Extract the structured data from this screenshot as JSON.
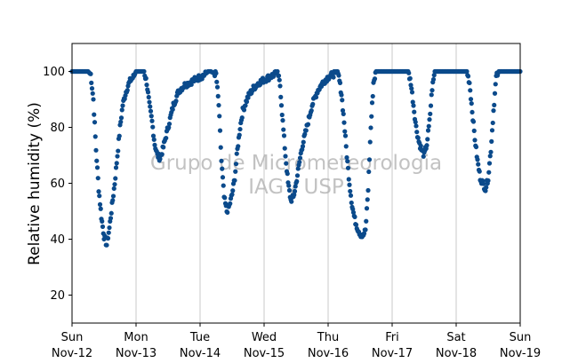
{
  "chart_data": {
    "type": "scatter",
    "title": "",
    "ylabel": "Relative humidity (%)",
    "xlabel": "",
    "ylim": [
      10,
      110
    ],
    "yticks": [
      20,
      40,
      60,
      80,
      100
    ],
    "xlim": [
      "2017-11-12T00:00",
      "2017-11-19T00:00"
    ],
    "xticks": [
      {
        "day": "Sun",
        "date": "Nov-12"
      },
      {
        "day": "Mon",
        "date": "Nov-13"
      },
      {
        "day": "Tue",
        "date": "Nov-14"
      },
      {
        "day": "Wed",
        "date": "Nov-15"
      },
      {
        "day": "Thu",
        "date": "Nov-16"
      },
      {
        "day": "Fri",
        "date": "Nov-17"
      },
      {
        "day": "Sat",
        "date": "Nov-18"
      },
      {
        "day": "Sun",
        "date": "Nov-19"
      }
    ],
    "grid": "vertical",
    "marker_color": "#0b4a8b",
    "watermark": [
      "Grupo de Micrometeorologia",
      "IAG / USP"
    ],
    "series": [
      {
        "points": [
          [
            "2017-11-12T00:00",
            100
          ],
          [
            "2017-11-12T02:00",
            100
          ],
          [
            "2017-11-12T04:00",
            100
          ],
          [
            "2017-11-12T06:00",
            100
          ],
          [
            "2017-11-12T07:00",
            99
          ],
          [
            "2017-11-12T08:00",
            90
          ],
          [
            "2017-11-12T09:00",
            72
          ],
          [
            "2017-11-12T10:00",
            58
          ],
          [
            "2017-11-12T11:00",
            48
          ],
          [
            "2017-11-12T12:00",
            41
          ],
          [
            "2017-11-12T13:00",
            38
          ],
          [
            "2017-11-12T14:00",
            44
          ],
          [
            "2017-11-12T15:00",
            52
          ],
          [
            "2017-11-12T16:00",
            60
          ],
          [
            "2017-11-12T17:00",
            70
          ],
          [
            "2017-11-12T18:00",
            80
          ],
          [
            "2017-11-12T19:00",
            88
          ],
          [
            "2017-11-12T20:00",
            92
          ],
          [
            "2017-11-12T21:00",
            95
          ],
          [
            "2017-11-12T22:00",
            97
          ],
          [
            "2017-11-12T23:00",
            98
          ],
          [
            "2017-11-13T00:00",
            100
          ],
          [
            "2017-11-13T02:00",
            100
          ],
          [
            "2017-11-13T03:00",
            100
          ],
          [
            "2017-11-13T04:00",
            96
          ],
          [
            "2017-11-13T05:00",
            88
          ],
          [
            "2017-11-13T06:00",
            82
          ],
          [
            "2017-11-13T07:00",
            74
          ],
          [
            "2017-11-13T08:00",
            70
          ],
          [
            "2017-11-13T09:00",
            69
          ],
          [
            "2017-11-13T10:00",
            72
          ],
          [
            "2017-11-13T11:00",
            76
          ],
          [
            "2017-11-13T12:00",
            80
          ],
          [
            "2017-11-13T14:00",
            88
          ],
          [
            "2017-11-13T16:00",
            93
          ],
          [
            "2017-11-13T18:00",
            95
          ],
          [
            "2017-11-13T20:00",
            96
          ],
          [
            "2017-11-13T22:00",
            97
          ],
          [
            "2017-11-14T00:00",
            98
          ],
          [
            "2017-11-14T02:00",
            99
          ],
          [
            "2017-11-14T03:00",
            100
          ],
          [
            "2017-11-14T04:00",
            100
          ],
          [
            "2017-11-14T06:00",
            99
          ],
          [
            "2017-11-14T07:00",
            88
          ],
          [
            "2017-11-14T08:00",
            68
          ],
          [
            "2017-11-14T09:00",
            55
          ],
          [
            "2017-11-14T10:00",
            50
          ],
          [
            "2017-11-14T11:00",
            52
          ],
          [
            "2017-11-14T12:00",
            56
          ],
          [
            "2017-11-14T13:00",
            62
          ],
          [
            "2017-11-14T14:00",
            72
          ],
          [
            "2017-11-14T15:00",
            80
          ],
          [
            "2017-11-14T16:00",
            86
          ],
          [
            "2017-11-14T18:00",
            91
          ],
          [
            "2017-11-14T20:00",
            94
          ],
          [
            "2017-11-14T22:00",
            96
          ],
          [
            "2017-11-15T00:00",
            97
          ],
          [
            "2017-11-15T02:00",
            98
          ],
          [
            "2017-11-15T04:00",
            99
          ],
          [
            "2017-11-15T05:00",
            100
          ],
          [
            "2017-11-15T06:00",
            95
          ],
          [
            "2017-11-15T07:00",
            82
          ],
          [
            "2017-11-15T08:00",
            70
          ],
          [
            "2017-11-15T09:00",
            60
          ],
          [
            "2017-11-15T10:00",
            54
          ],
          [
            "2017-11-15T11:00",
            55
          ],
          [
            "2017-11-15T12:00",
            60
          ],
          [
            "2017-11-15T13:00",
            66
          ],
          [
            "2017-11-15T14:00",
            72
          ],
          [
            "2017-11-15T15:00",
            76
          ],
          [
            "2017-11-15T16:00",
            80
          ],
          [
            "2017-11-15T18:00",
            88
          ],
          [
            "2017-11-15T20:00",
            93
          ],
          [
            "2017-11-15T22:00",
            96
          ],
          [
            "2017-11-16T00:00",
            98
          ],
          [
            "2017-11-16T02:00",
            99
          ],
          [
            "2017-11-16T03:00",
            100
          ],
          [
            "2017-11-16T04:00",
            98
          ],
          [
            "2017-11-16T05:00",
            92
          ],
          [
            "2017-11-16T06:00",
            82
          ],
          [
            "2017-11-16T07:00",
            70
          ],
          [
            "2017-11-16T08:00",
            60
          ],
          [
            "2017-11-16T09:00",
            52
          ],
          [
            "2017-11-16T10:00",
            47
          ],
          [
            "2017-11-16T11:00",
            44
          ],
          [
            "2017-11-16T12:00",
            42
          ],
          [
            "2017-11-16T13:00",
            41
          ],
          [
            "2017-11-16T14:00",
            43
          ],
          [
            "2017-11-16T15:00",
            58
          ],
          [
            "2017-11-16T16:00",
            80
          ],
          [
            "2017-11-16T17:00",
            96
          ],
          [
            "2017-11-16T18:00",
            100
          ],
          [
            "2017-11-17T00:00",
            100
          ],
          [
            "2017-11-17T06:00",
            100
          ],
          [
            "2017-11-17T07:00",
            96
          ],
          [
            "2017-11-17T08:00",
            88
          ],
          [
            "2017-11-17T09:00",
            80
          ],
          [
            "2017-11-17T10:00",
            75
          ],
          [
            "2017-11-17T11:00",
            72
          ],
          [
            "2017-11-17T12:00",
            70
          ],
          [
            "2017-11-17T13:00",
            74
          ],
          [
            "2017-11-17T14:00",
            82
          ],
          [
            "2017-11-17T15:00",
            94
          ],
          [
            "2017-11-17T16:00",
            100
          ],
          [
            "2017-11-18T00:00",
            100
          ],
          [
            "2017-11-18T04:00",
            100
          ],
          [
            "2017-11-18T05:00",
            96
          ],
          [
            "2017-11-18T06:00",
            86
          ],
          [
            "2017-11-18T07:00",
            76
          ],
          [
            "2017-11-18T08:00",
            68
          ],
          [
            "2017-11-18T09:00",
            62
          ],
          [
            "2017-11-18T10:00",
            60
          ],
          [
            "2017-11-18T11:00",
            58
          ],
          [
            "2017-11-18T12:00",
            62
          ],
          [
            "2017-11-18T13:00",
            72
          ],
          [
            "2017-11-18T14:00",
            86
          ],
          [
            "2017-11-18T15:00",
            98
          ],
          [
            "2017-11-18T16:00",
            100
          ],
          [
            "2017-11-19T00:00",
            100
          ]
        ]
      }
    ]
  }
}
